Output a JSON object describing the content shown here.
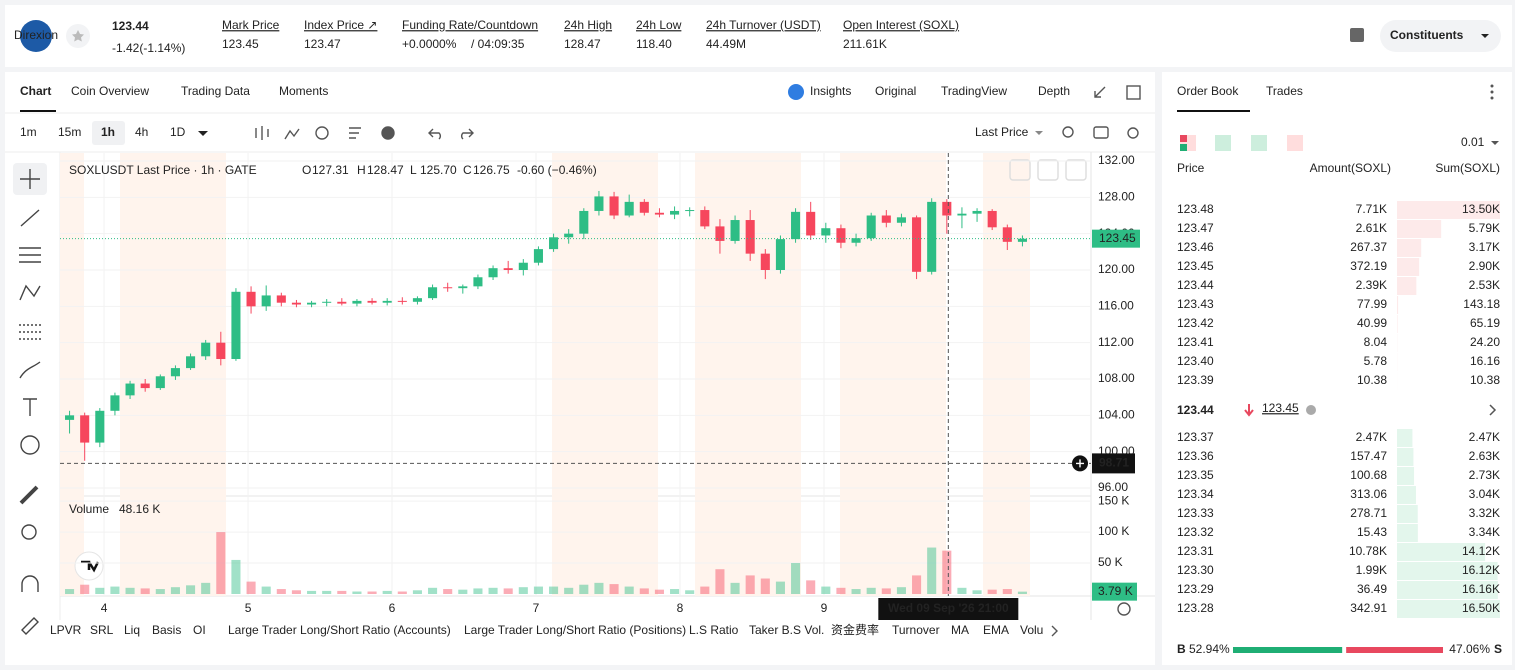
{
  "header": {
    "logo": "Direxion",
    "price": "123.44",
    "change": "-1.42(-1.14%)",
    "stats": [
      {
        "label": "Mark Price",
        "value": "123.45"
      },
      {
        "label": "Index Price ↗",
        "value": "123.47"
      },
      {
        "label": "Funding Rate/Countdown",
        "value": "+0.0000%",
        "extra": "/ 04:09:35"
      },
      {
        "label": "24h High",
        "value": "128.47"
      },
      {
        "label": "24h Low",
        "value": "118.40"
      },
      {
        "label": "24h Turnover (USDT)",
        "value": "44.49M"
      },
      {
        "label": "Open Interest (SOXL)",
        "value": "211.61K"
      }
    ],
    "button": "Constituents"
  },
  "tabs": [
    "Chart",
    "Coin Overview",
    "Trading Data",
    "Moments"
  ],
  "views": [
    "Insights",
    "Original",
    "TradingView",
    "Depth"
  ],
  "intervals": [
    "1m",
    "15m",
    "1h",
    "4h",
    "1D"
  ],
  "price_source": "Last Price",
  "indicators": [
    "LPVR",
    "SRL",
    "Liq",
    "Basis",
    "OI",
    "Large Trader Long/Short Ratio (Accounts)",
    "Large Trader Long/Short Ratio (Positions)",
    "L.S Ratio",
    "Taker B.S Vol.",
    "资金费率",
    "Turnover",
    "MA",
    "EMA",
    "Volu"
  ],
  "chart_data": {
    "type": "candlestick",
    "title": "SOXLUSDT Last Price · 1h · GATE",
    "ohlc_legend": [
      {
        "key": "O",
        "value": "127.31"
      },
      {
        "key": "H",
        "value": "128.47"
      },
      {
        "key": "L",
        "value": "125.70"
      },
      {
        "key": "C",
        "value": "126.75"
      }
    ],
    "legend_change": "-0.60 (−0.46%)",
    "volume_title": "Volume",
    "volume_legend": "48.16 K",
    "open": [
      103.5,
      104.0,
      101.0,
      104.5,
      106.2,
      107.5,
      107.0,
      108.3,
      109.2,
      110.5,
      112.0,
      110.2,
      117.6,
      116.0,
      117.2,
      116.4,
      116.2,
      116.4,
      116.5,
      116.3,
      116.6,
      116.4,
      116.6,
      116.5,
      116.9,
      118.1,
      118.0,
      118.2,
      119.2,
      120.2,
      120.0,
      120.8,
      122.3,
      123.6,
      124.0,
      126.5,
      128.1,
      126.0,
      127.5,
      126.3,
      126.1,
      126.5,
      126.6,
      124.8,
      123.2,
      125.5,
      121.8,
      120.0,
      123.4,
      126.4,
      123.8,
      124.6,
      123.0,
      123.5,
      126.0,
      125.2,
      125.8,
      119.8,
      127.5,
      126.0,
      126.2,
      126.5,
      124.7,
      123.1
    ],
    "high": [
      104.5,
      104.3,
      104.8,
      106.5,
      107.8,
      108.0,
      108.5,
      109.5,
      110.8,
      112.3,
      113.2,
      118.0,
      118.2,
      118.3,
      117.5,
      116.7,
      116.6,
      116.8,
      116.9,
      116.8,
      116.9,
      116.9,
      117.0,
      117.1,
      118.4,
      118.6,
      118.4,
      119.5,
      120.5,
      121.0,
      121.2,
      122.6,
      124.0,
      124.5,
      126.8,
      128.7,
      128.6,
      128.3,
      127.8,
      126.8,
      127.0,
      126.9,
      127.0,
      125.6,
      126.0,
      126.6,
      122.3,
      123.8,
      126.8,
      127.5,
      125.2,
      125.0,
      124.0,
      126.3,
      126.6,
      126.2,
      126.0,
      127.9,
      127.8,
      126.9,
      126.8,
      126.7,
      125.0,
      123.8
    ],
    "low": [
      102.0,
      99.0,
      100.5,
      104.0,
      105.8,
      106.6,
      106.8,
      107.9,
      109.0,
      110.1,
      109.5,
      110.0,
      115.2,
      115.5,
      116.0,
      115.9,
      115.9,
      116.0,
      116.1,
      116.0,
      116.2,
      116.1,
      116.2,
      116.2,
      116.7,
      117.6,
      117.4,
      117.9,
      118.9,
      119.6,
      119.4,
      120.5,
      122.0,
      122.9,
      123.4,
      126.0,
      125.6,
      125.8,
      126.0,
      125.8,
      125.6,
      125.9,
      124.5,
      121.8,
      122.9,
      121.0,
      119.0,
      119.6,
      123.0,
      123.3,
      123.0,
      122.4,
      122.6,
      123.2,
      124.7,
      124.8,
      119.0,
      119.5,
      124.0,
      124.6,
      125.3,
      124.4,
      122.2,
      122.6
    ],
    "close": [
      104.0,
      101.0,
      104.5,
      106.2,
      107.5,
      107.0,
      108.3,
      109.2,
      110.5,
      112.0,
      110.2,
      117.6,
      116.0,
      117.2,
      116.4,
      116.2,
      116.4,
      116.5,
      116.3,
      116.6,
      116.4,
      116.6,
      116.5,
      116.9,
      118.1,
      118.0,
      118.2,
      119.2,
      120.2,
      120.0,
      120.8,
      122.3,
      123.6,
      124.0,
      126.5,
      128.1,
      126.0,
      127.5,
      126.3,
      126.1,
      126.5,
      126.6,
      124.8,
      123.2,
      125.5,
      121.8,
      120.0,
      123.4,
      126.4,
      123.8,
      124.6,
      123.0,
      123.5,
      126.0,
      125.2,
      125.8,
      119.8,
      127.5,
      126.0,
      126.2,
      126.5,
      124.7,
      123.1,
      123.44
    ],
    "volume": [
      8,
      15,
      10,
      12,
      10,
      9,
      8,
      11,
      14,
      18,
      100,
      55,
      20,
      12,
      8,
      6,
      5,
      5,
      5,
      4,
      4,
      5,
      4,
      6,
      10,
      8,
      7,
      9,
      10,
      9,
      11,
      12,
      12,
      10,
      15,
      18,
      16,
      12,
      9,
      7,
      8,
      6,
      12,
      40,
      18,
      30,
      25,
      20,
      50,
      22,
      12,
      10,
      8,
      10,
      9,
      11,
      30,
      75,
      70,
      10,
      6,
      7,
      8,
      3.79
    ],
    "xlim": [
      0,
      64
    ],
    "xticks": [
      {
        "value": 2.78,
        "label": "4"
      },
      {
        "value": 12.3,
        "label": "5"
      },
      {
        "value": 21.82,
        "label": "6"
      },
      {
        "value": 31.34,
        "label": "7"
      },
      {
        "value": 40.86,
        "label": "8"
      },
      {
        "value": 50.38,
        "label": "9"
      }
    ],
    "ylim": [
      95.12,
      132.88
    ],
    "yticks": [
      {
        "value": 132,
        "label": "132.00"
      },
      {
        "value": 128,
        "label": "128.00"
      },
      {
        "value": 124,
        "label": "124.00"
      },
      {
        "value": 120,
        "label": "120.00"
      },
      {
        "value": 116,
        "label": "116.00"
      },
      {
        "value": 112,
        "label": "112.00"
      },
      {
        "value": 108,
        "label": "108.00"
      },
      {
        "value": 104,
        "label": "104.00"
      },
      {
        "value": 100,
        "label": "100.00"
      },
      {
        "value": 96,
        "label": "96.00"
      }
    ],
    "volume_lim": [
      0,
      155
    ],
    "volume_ticks": [
      {
        "value": 150,
        "label": "150 K"
      },
      {
        "value": 100,
        "label": "100 K"
      },
      {
        "value": 50,
        "label": "50 K"
      }
    ],
    "last_price": 123.45,
    "last_volume": 3.79,
    "last_volume_label": "3.79 K",
    "crosshair_price": 98.71,
    "crosshair_x": 58.6,
    "crosshair_label": "Wed 09 Sep '26  21:00",
    "up_color": "#2ebd85",
    "down_color": "#f6465d"
  },
  "order_book": {
    "tabs": [
      "Order Book",
      "Trades"
    ],
    "precision": "0.01",
    "columns": [
      "Price",
      "Amount(SOXL)",
      "Sum(SOXL)"
    ],
    "asks": {
      "prices": [
        "123.48",
        "123.47",
        "123.46",
        "123.45",
        "123.44",
        "123.43",
        "123.42",
        "123.41",
        "123.40",
        "123.39"
      ],
      "amounts": [
        "7.71K",
        "2.61K",
        "267.37",
        "372.19",
        "2.39K",
        "77.99",
        "40.99",
        "8.04",
        "5.78",
        "10.38"
      ],
      "sums": [
        13500,
        5790,
        3170,
        2900,
        2530,
        143.18,
        65.19,
        24.2,
        16.16,
        10.38
      ],
      "sum_labels": [
        "13.50K",
        "5.79K",
        "3.17K",
        "2.90K",
        "2.53K",
        "143.18",
        "65.19",
        "24.20",
        "16.16",
        "10.38"
      ]
    },
    "mid_price": "123.44",
    "mark_price": "123.45",
    "bids": {
      "prices": [
        "123.37",
        "123.36",
        "123.35",
        "123.34",
        "123.33",
        "123.32",
        "123.31",
        "123.30",
        "123.29",
        "123.28"
      ],
      "amounts": [
        "2.47K",
        "157.47",
        "100.68",
        "313.06",
        "278.71",
        "15.43",
        "10.78K",
        "1.99K",
        "36.49",
        "342.91"
      ],
      "sums": [
        2470,
        2630,
        2730,
        3040,
        3320,
        3340,
        14120,
        16120,
        16160,
        16500
      ],
      "sum_labels": [
        "2.47K",
        "2.63K",
        "2.73K",
        "3.04K",
        "3.32K",
        "3.34K",
        "14.12K",
        "16.12K",
        "16.16K",
        "16.50K"
      ]
    },
    "buy_label": "B",
    "buy_ratio": 52.94,
    "buy_ratio_label": "52.94%",
    "sell_ratio": 47.06,
    "sell_ratio_label": "47.06%",
    "sell_label": "S"
  }
}
